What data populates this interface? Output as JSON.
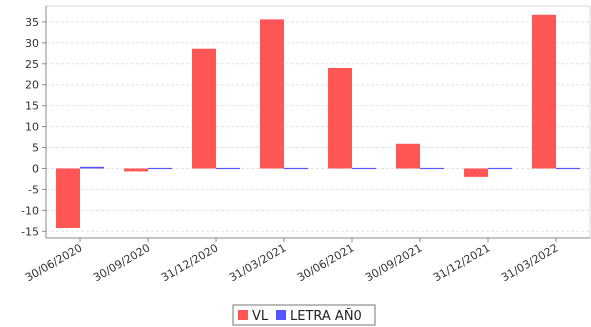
{
  "chart_data": {
    "type": "bar",
    "title": "",
    "xlabel": "",
    "ylabel": "",
    "categories": [
      "30/06/2020",
      "30/09/2020",
      "31/12/2020",
      "31/03/2021",
      "30/06/2021",
      "30/09/2021",
      "31/12/2021",
      "31/03/2022"
    ],
    "series": [
      {
        "name": "VL",
        "color": "#ff5555",
        "values": [
          -14.2,
          -0.7,
          28.6,
          35.6,
          24.0,
          5.9,
          -2.0,
          36.7
        ]
      },
      {
        "name": "LETRA AÑ0",
        "color": "#5555ff",
        "values": [
          0.4,
          0.0,
          0.0,
          0.1,
          0.1,
          0.1,
          0.1,
          0.1
        ]
      }
    ],
    "ylim": [
      -16.6,
      38.8
    ],
    "yticks": [
      -15,
      -10,
      -5,
      0,
      5,
      10,
      15,
      20,
      25,
      30,
      35
    ],
    "grid": true,
    "legend_position": "bottom-center"
  }
}
